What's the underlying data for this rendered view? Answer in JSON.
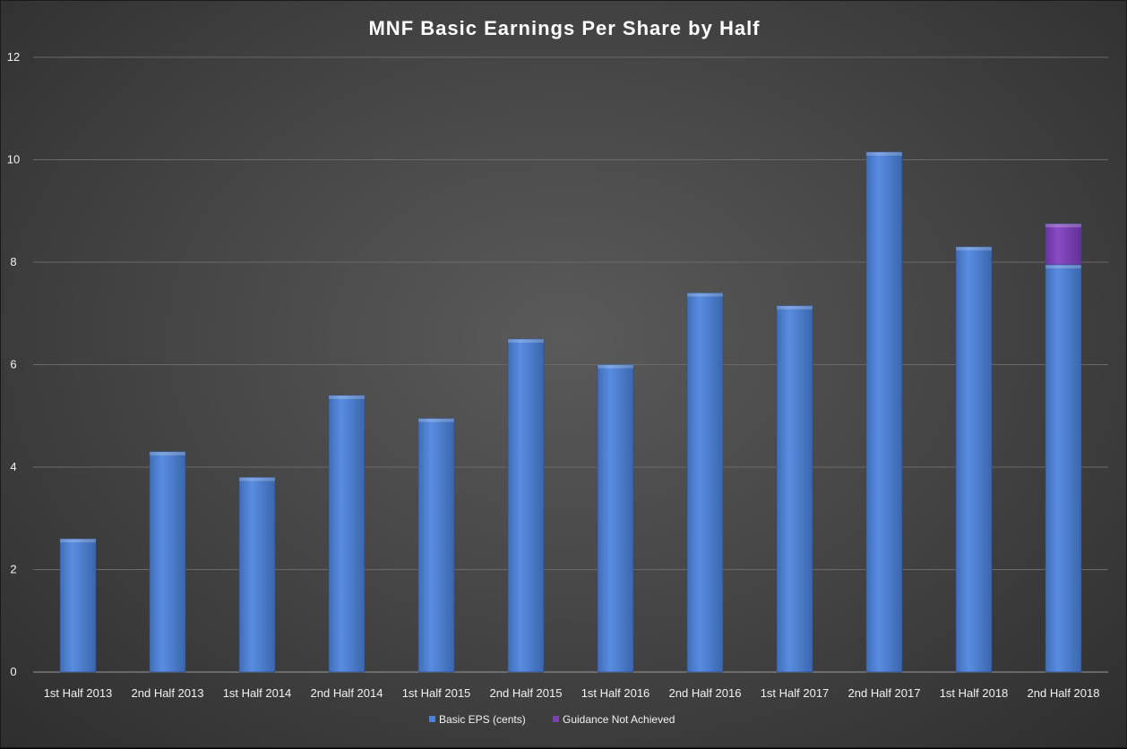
{
  "chart_data": {
    "type": "bar",
    "title": "MNF Basic Earnings Per Share by Half",
    "xlabel": "",
    "ylabel": "",
    "ylim": [
      0,
      12
    ],
    "yticks": [
      0,
      2,
      4,
      6,
      8,
      10,
      12
    ],
    "grid": true,
    "stacked": true,
    "legend_position": "bottom",
    "categories": [
      "1st Half 2013",
      "2nd Half 2013",
      "1st Half 2014",
      "2nd Half 2014",
      "1st Half 2015",
      "2nd Half 2015",
      "1st Half 2016",
      "2nd Half 2016",
      "1st Half 2017",
      "2nd Half 2017",
      "1st Half 2018",
      "2nd Half 2018"
    ],
    "series": [
      {
        "name": "Basic EPS (cents)",
        "color": "#4f81d3",
        "values": [
          2.6,
          4.3,
          3.8,
          5.4,
          4.95,
          6.5,
          6.0,
          7.4,
          7.15,
          10.15,
          8.3,
          7.95
        ]
      },
      {
        "name": "Guidance Not Achieved",
        "color": "#7a3fb0",
        "values": [
          0,
          0,
          0,
          0,
          0,
          0,
          0,
          0,
          0,
          0,
          0,
          0.8
        ]
      }
    ]
  }
}
